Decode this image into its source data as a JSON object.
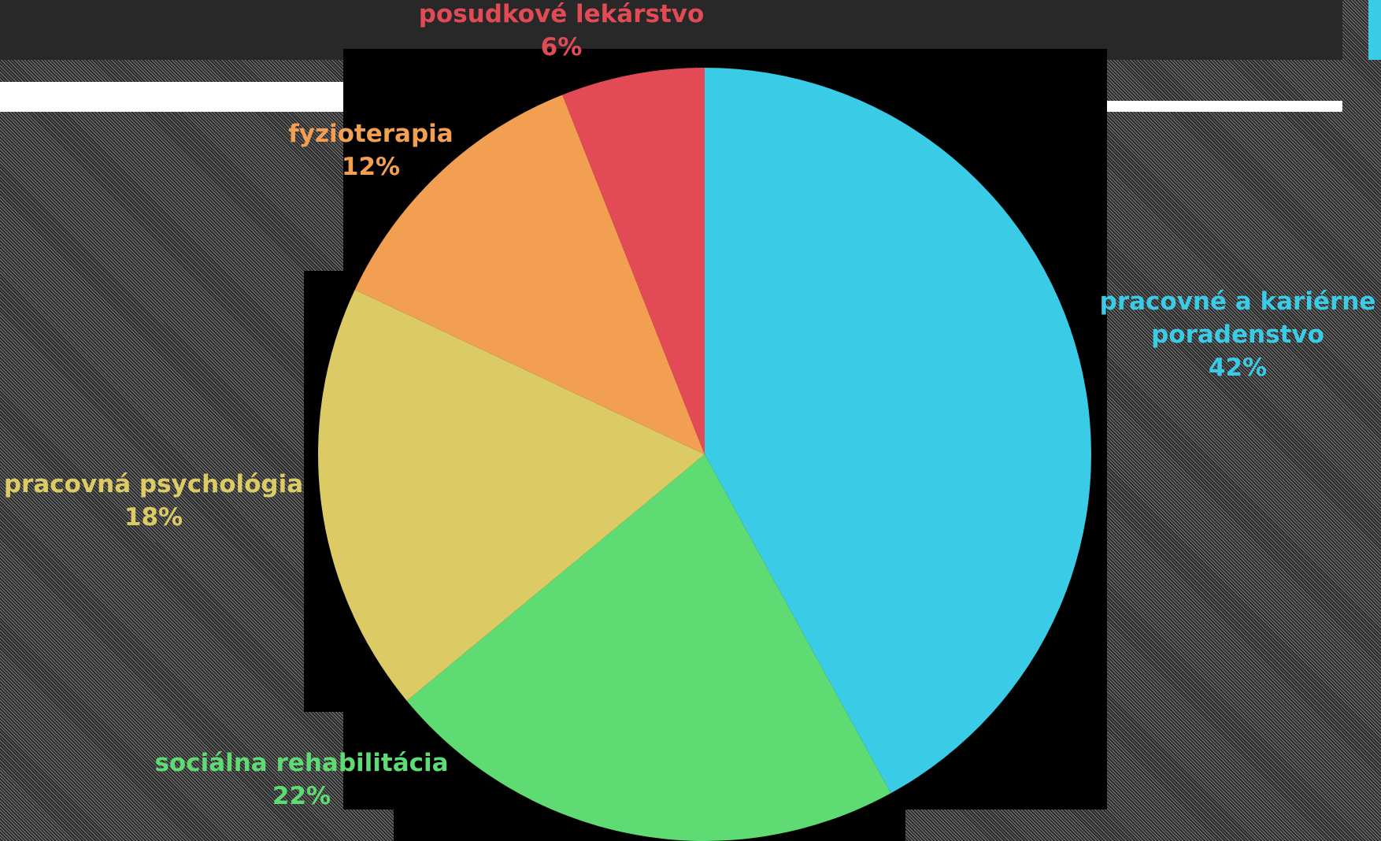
{
  "chart_data": {
    "type": "pie",
    "title": "",
    "slices": [
      {
        "label": "pracovné a kariérne poradenstvo",
        "label_lines": [
          "pracovné a kariérne",
          "poradenstvo"
        ],
        "value": 42,
        "value_label": "42%",
        "color": "#3acbe6"
      },
      {
        "label": "sociálna rehabilitácia",
        "label_lines": [
          "sociálna rehabilitácia"
        ],
        "value": 22,
        "value_label": "22%",
        "color": "#5edb72"
      },
      {
        "label": "pracovná psychológia",
        "label_lines": [
          "pracovná psychológia"
        ],
        "value": 18,
        "value_label": "18%",
        "color": "#dccb65"
      },
      {
        "label": "fyzioterapia",
        "label_lines": [
          "fyzioterapia"
        ],
        "value": 12,
        "value_label": "12%",
        "color": "#f29f52"
      },
      {
        "label": "posudkové lekárstvo",
        "label_lines": [
          "posudkové lekárstvo"
        ],
        "value": 6,
        "value_label": "6%",
        "color": "#e24b55"
      }
    ],
    "start_angle": "12 o'clock",
    "direction": "clockwise",
    "legend": "none"
  },
  "background": {
    "accent": "#3acbe6",
    "bar_color": "#282828",
    "panel_color": "#000000"
  }
}
